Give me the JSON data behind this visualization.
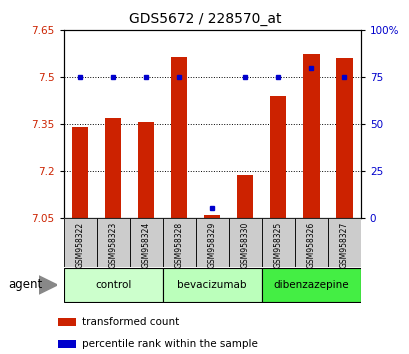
{
  "title": "GDS5672 / 228570_at",
  "samples": [
    "GSM958322",
    "GSM958323",
    "GSM958324",
    "GSM958328",
    "GSM958329",
    "GSM958330",
    "GSM958325",
    "GSM958326",
    "GSM958327"
  ],
  "red_values": [
    7.34,
    7.37,
    7.355,
    7.565,
    7.06,
    7.185,
    7.44,
    7.575,
    7.56
  ],
  "blue_values": [
    75,
    75,
    75,
    75,
    5,
    75,
    75,
    80,
    75
  ],
  "ylim_left": [
    7.05,
    7.65
  ],
  "ylim_right": [
    0,
    100
  ],
  "yticks_left": [
    7.05,
    7.2,
    7.35,
    7.5,
    7.65
  ],
  "yticks_right": [
    0,
    25,
    50,
    75,
    100
  ],
  "ytick_labels_left": [
    "7.05",
    "7.2",
    "7.35",
    "7.5",
    "7.65"
  ],
  "ytick_labels_right": [
    "0",
    "25",
    "50",
    "75",
    "100%"
  ],
  "bar_color": "#cc2200",
  "dot_color": "#0000cc",
  "agent_label": "agent",
  "legend_bar": "transformed count",
  "legend_dot": "percentile rank within the sample",
  "ylabel_left_color": "#cc2200",
  "ylabel_right_color": "#0000cc",
  "group_configs": [
    {
      "label": "control",
      "start": 0,
      "end": 2,
      "color": "#ccffcc"
    },
    {
      "label": "bevacizumab",
      "start": 3,
      "end": 5,
      "color": "#bbffbb"
    },
    {
      "label": "dibenzazepine",
      "start": 6,
      "end": 8,
      "color": "#44ee44"
    }
  ]
}
